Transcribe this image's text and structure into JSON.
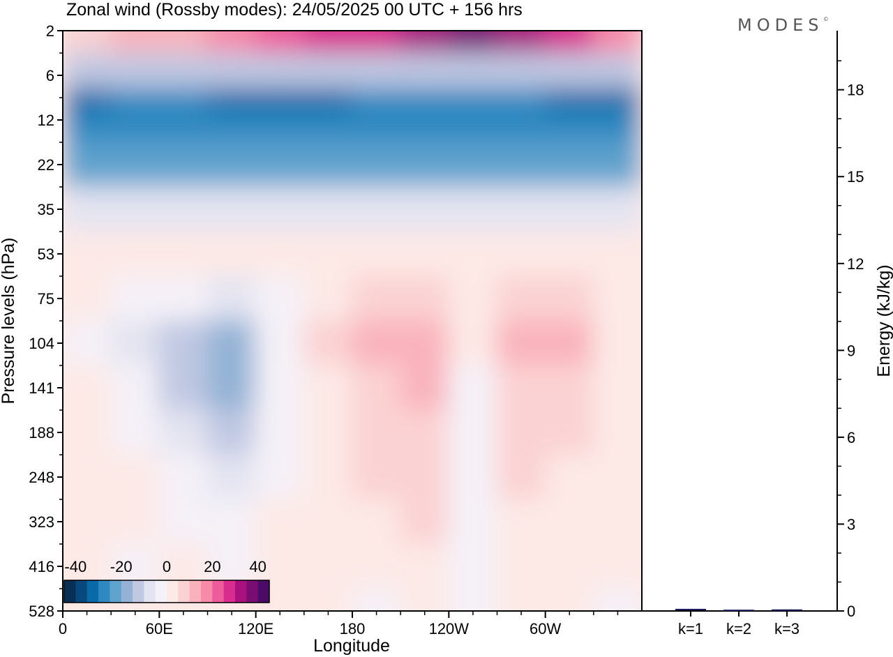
{
  "chart_data": {
    "type": "heatmap",
    "title": "Zonal wind (Rossby modes):  24/05/2025  00 UTC  + 156 hrs",
    "xlabel": "Longitude",
    "ylabel": "Pressure levels (hPa)",
    "x_ticks": [
      "0",
      "60E",
      "120E",
      "180",
      "120W",
      "60W"
    ],
    "y_ticks": [
      "2",
      "6",
      "12",
      "22",
      "35",
      "53",
      "75",
      "104",
      "141",
      "188",
      "248",
      "323",
      "416",
      "528"
    ],
    "colorbar": {
      "ticks": [
        "-40",
        "-20",
        "0",
        "20",
        "40"
      ],
      "range": [
        -45,
        45
      ],
      "step": 5,
      "colors": [
        "#0a2f55",
        "#08497d",
        "#0a6aa7",
        "#2f89c1",
        "#5fa2cd",
        "#93b2d6",
        "#c0c8e2",
        "#e3e4f1",
        "#f5f1f8",
        "#fde9e6",
        "#fbd2d3",
        "#f9b2bc",
        "#f78aa8",
        "#ef5c9b",
        "#d92c8f",
        "#a8117e",
        "#7a0d74",
        "#4c0b66"
      ]
    },
    "field_samples": {
      "description": "approximate zonal wind (m/s) by pressure level and longitude",
      "longitudes": [
        "0",
        "30E",
        "60E",
        "90E",
        "120E",
        "150E",
        "180",
        "150W",
        "120W",
        "90W",
        "60W",
        "30W"
      ],
      "levels": [
        {
          "level": "2",
          "values": [
            8,
            10,
            12,
            15,
            20,
            25,
            28,
            30,
            35,
            30,
            25,
            15
          ]
        },
        {
          "level": "6",
          "values": [
            -15,
            -15,
            -15,
            -15,
            -15,
            -15,
            -15,
            -15,
            -15,
            -15,
            -15,
            -15
          ]
        },
        {
          "level": "9",
          "values": [
            -32,
            -28,
            -28,
            -33,
            -34,
            -34,
            -30,
            -28,
            -28,
            -30,
            -33,
            -34
          ]
        },
        {
          "level": "12",
          "values": [
            -26,
            -26,
            -26,
            -27,
            -28,
            -28,
            -27,
            -26,
            -26,
            -26,
            -27,
            -27
          ]
        },
        {
          "level": "22",
          "values": [
            -22,
            -22,
            -22,
            -22,
            -22,
            -22,
            -23,
            -24,
            -22,
            -22,
            -22,
            -22
          ]
        },
        {
          "level": "35",
          "values": [
            -7,
            -7,
            -7,
            -7,
            -7,
            -7,
            -7,
            -7,
            -7,
            -7,
            -7,
            -7
          ]
        },
        {
          "level": "53",
          "values": [
            1,
            2,
            2,
            2,
            3,
            3,
            3,
            3,
            3,
            3,
            3,
            2
          ]
        },
        {
          "level": "75",
          "values": [
            0,
            -3,
            -5,
            -8,
            -3,
            4,
            6,
            7,
            2,
            6,
            6,
            2
          ]
        },
        {
          "level": "104",
          "values": [
            -1,
            -6,
            -12,
            -18,
            -4,
            5,
            10,
            11,
            1,
            11,
            10,
            3
          ]
        },
        {
          "level": "141",
          "values": [
            0,
            -4,
            -14,
            -20,
            -3,
            4,
            8,
            10,
            -1,
            8,
            9,
            2
          ]
        },
        {
          "level": "188",
          "values": [
            1,
            -2,
            -8,
            -14,
            -2,
            3,
            6,
            8,
            -1,
            6,
            6,
            2
          ]
        },
        {
          "level": "248",
          "values": [
            1,
            0,
            -5,
            -9,
            -1,
            3,
            5,
            7,
            -1,
            5,
            4,
            1
          ]
        },
        {
          "level": "323",
          "values": [
            1,
            0,
            -2,
            -4,
            0,
            2,
            4,
            5,
            -2,
            3,
            2,
            1
          ]
        },
        {
          "level": "416",
          "values": [
            0,
            -1,
            0,
            -1,
            0,
            1,
            1,
            2,
            -2,
            1,
            1,
            0
          ]
        },
        {
          "level": "528",
          "values": [
            0,
            0,
            0,
            0,
            0,
            0,
            -1,
            0,
            -1,
            0,
            0,
            -1
          ]
        }
      ]
    },
    "side_panel": {
      "type": "bar",
      "ylabel": "Energy (kJ/kg)",
      "ylim": [
        0,
        20
      ],
      "y_ticks": [
        "0",
        "3",
        "6",
        "9",
        "12",
        "15",
        "18"
      ],
      "categories": [
        "k=1",
        "k=2",
        "k=3"
      ],
      "values": [
        0.05,
        0.02,
        0.03
      ],
      "bar_color": "#1a1a5e"
    }
  },
  "logo": {
    "text": "MODES",
    "mark": "©"
  }
}
